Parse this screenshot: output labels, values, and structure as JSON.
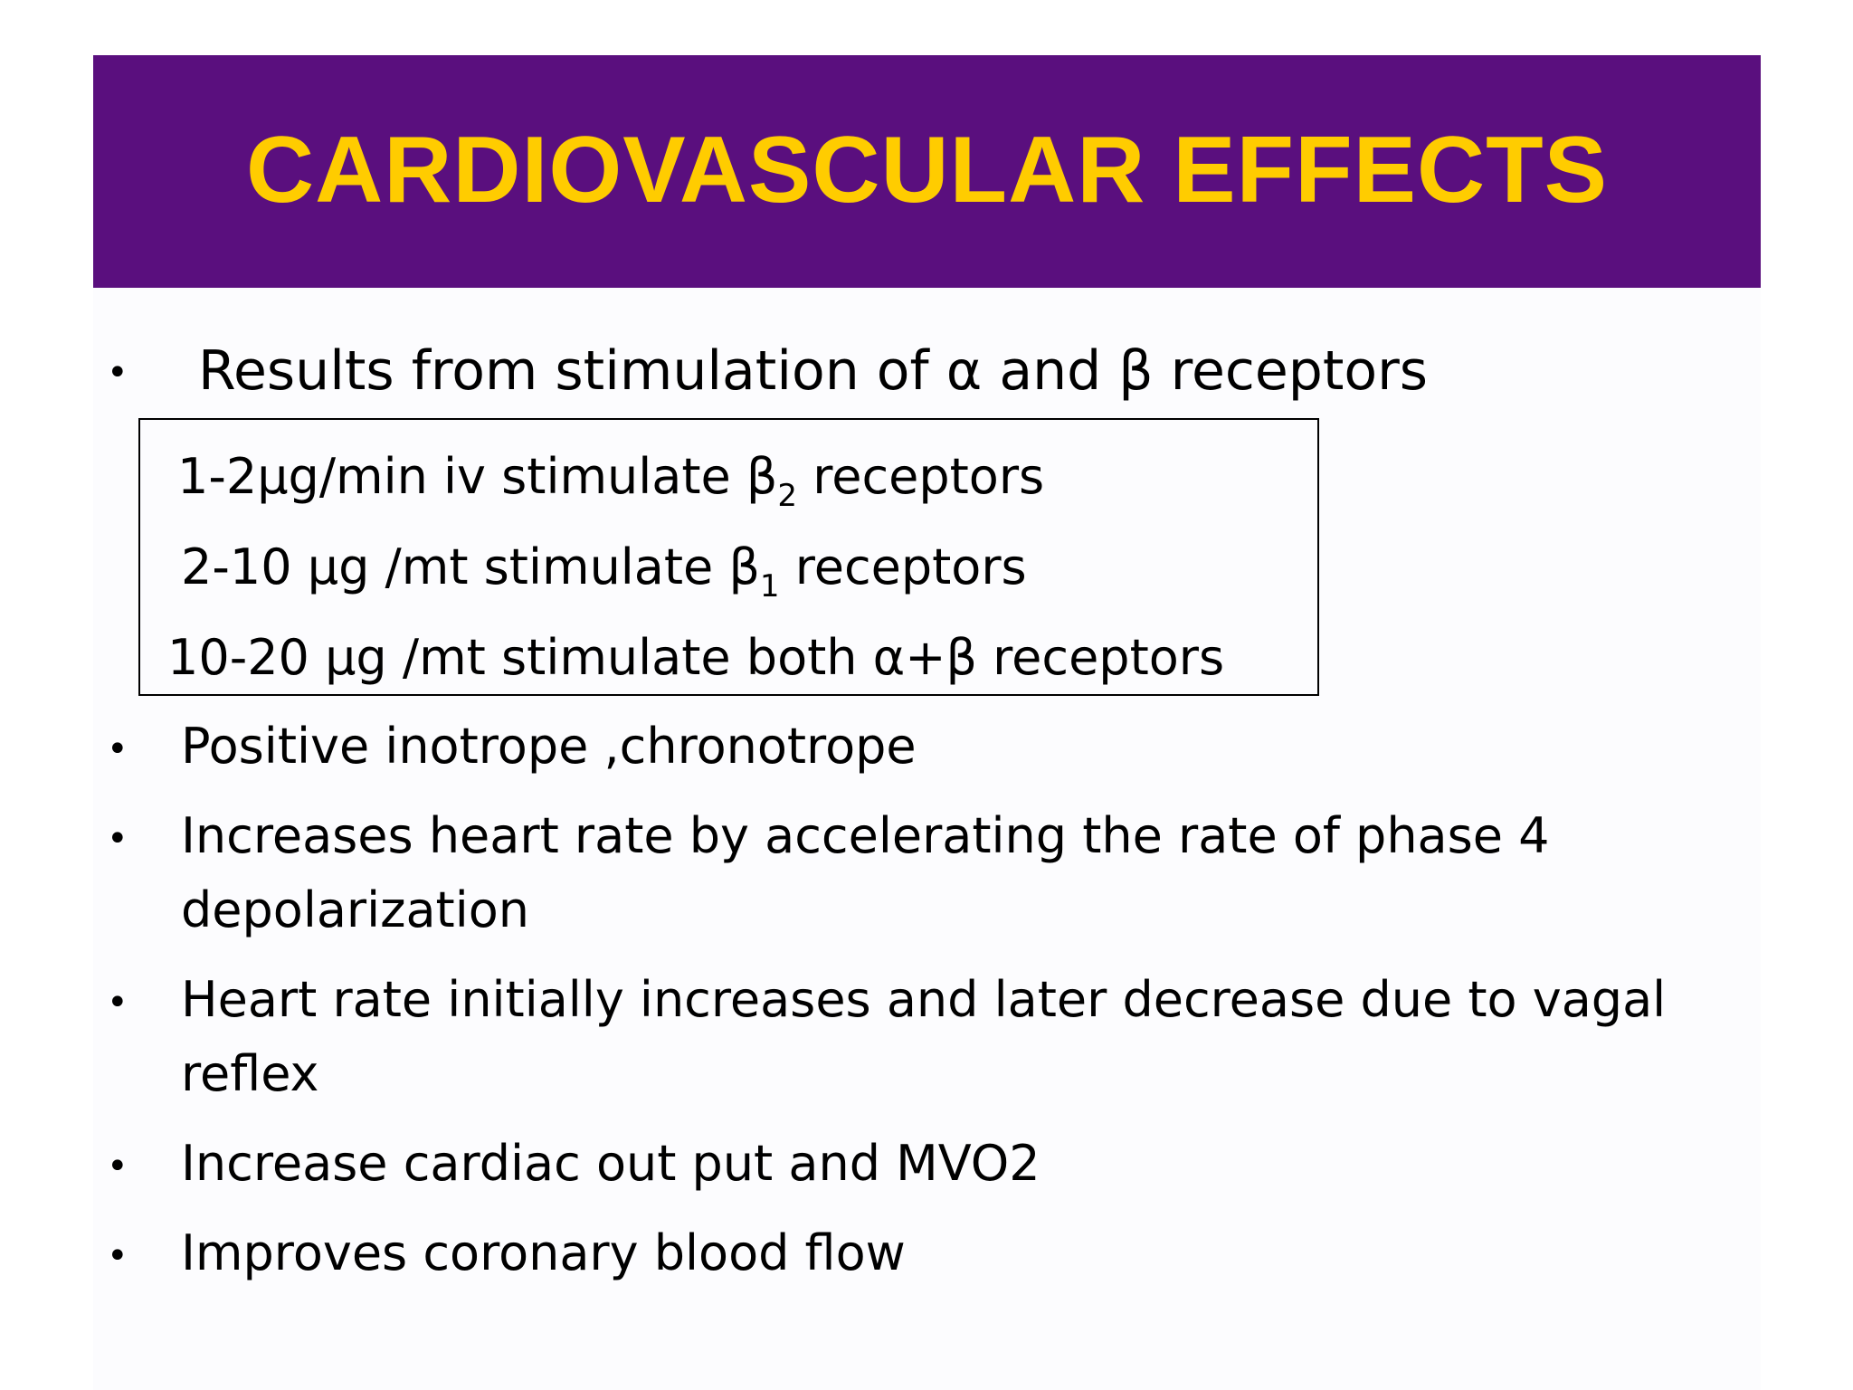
{
  "slide": {
    "title": "CARDIOVASCULAR EFFECTS",
    "intro_bullet": "Results from stimulation of α and β receptors",
    "dose_box": {
      "rows": [
        {
          "pre": "1-2μg/min iv stimulate β",
          "sub": "2",
          "post": "  receptors"
        },
        {
          "pre": "2-10 μg /mt  stimulate β",
          "sub": "1",
          "post": " receptors"
        },
        {
          "pre": "10-20 μg /mt  stimulate both α+β receptors",
          "sub": "",
          "post": ""
        }
      ]
    },
    "bullets": [
      {
        "lines": [
          "Positive inotrope ,chronotrope"
        ]
      },
      {
        "lines": [
          "Increases heart rate by accelerating the rate of phase 4",
          "depolarization"
        ]
      },
      {
        "lines": [
          "Heart rate initially increases and later decrease due to vagal",
          "reflex"
        ]
      },
      {
        "lines": [
          "Increase cardiac out put and MVO2"
        ]
      },
      {
        "lines": [
          "Improves coronary blood flow"
        ]
      }
    ],
    "bullet_glyph": "•",
    "colors": {
      "title_bar": "#5a0f7e",
      "title_text": "#ffcc00",
      "body_text": "#000000"
    }
  }
}
